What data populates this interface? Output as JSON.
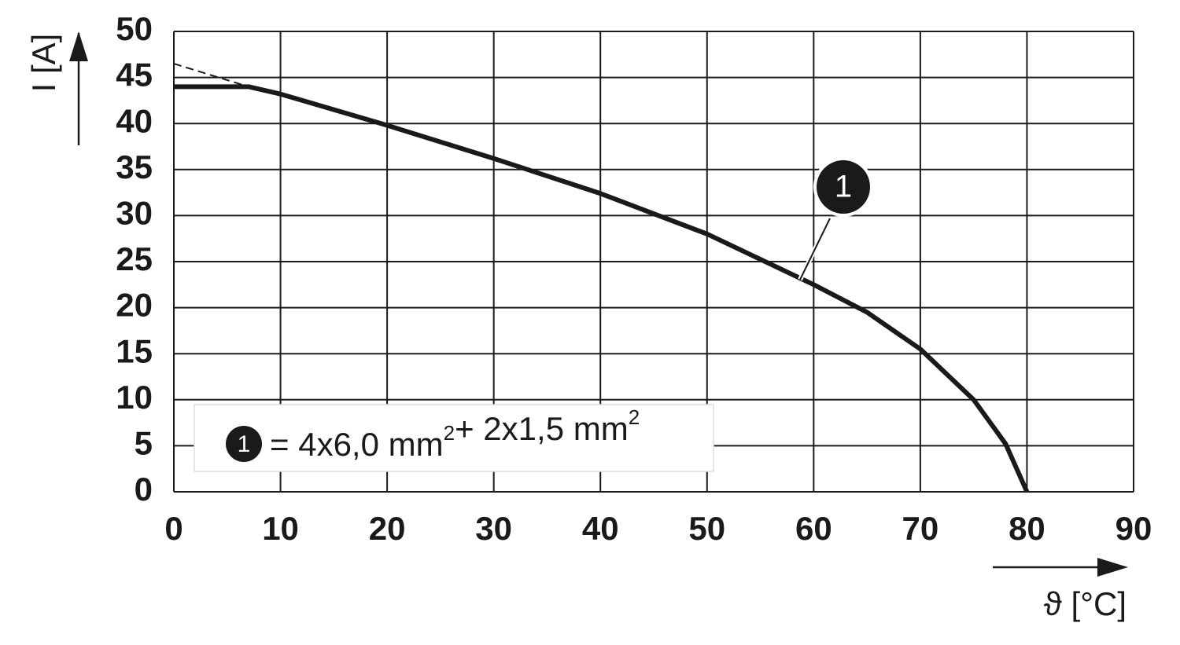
{
  "chart_data": {
    "type": "line",
    "xlabel": "ϑ [°C]",
    "ylabel": "I [A]",
    "xlim": [
      0,
      90
    ],
    "ylim": [
      0,
      50
    ],
    "xticks": [
      0,
      10,
      20,
      30,
      40,
      50,
      60,
      70,
      80,
      90
    ],
    "yticks": [
      0,
      5,
      10,
      15,
      20,
      25,
      30,
      35,
      40,
      45,
      50
    ],
    "grid": true,
    "marker_label": "1",
    "series": [
      {
        "name": "= 4x6,0 mm²+ 2x1,5 mm²",
        "color": "#1a1a1a",
        "style": "solid",
        "x": [
          0,
          7,
          10,
          20,
          30,
          40,
          50,
          60,
          65,
          70,
          75,
          78,
          80
        ],
        "values": [
          44,
          44,
          43.2,
          39.8,
          36.2,
          32.4,
          28,
          22.5,
          19.5,
          15.5,
          10,
          5.2,
          0
        ]
      },
      {
        "color": "#1a1a1a",
        "style": "dashed",
        "x": [
          0,
          7
        ],
        "values": [
          46.5,
          44
        ]
      }
    ]
  }
}
